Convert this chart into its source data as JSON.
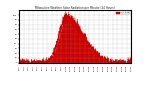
{
  "title": "Milwaukee Weather Solar Radiation per Minute (24 Hours)",
  "background_color": "#ffffff",
  "plot_area_color": "#ffffff",
  "fill_color": "#cc0000",
  "line_color": "#cc0000",
  "legend_label": "Solar Rad.",
  "legend_color": "#cc0000",
  "ylim": [
    0,
    110
  ],
  "xlim": [
    0,
    1440
  ],
  "grid_color": "#999999",
  "grid_style": "--",
  "num_points": 1440,
  "peak_minute": 600,
  "sigma_rise": 90,
  "sigma_fall": 220,
  "peak_value": 105,
  "sunrise": 300,
  "sunset": 1150
}
